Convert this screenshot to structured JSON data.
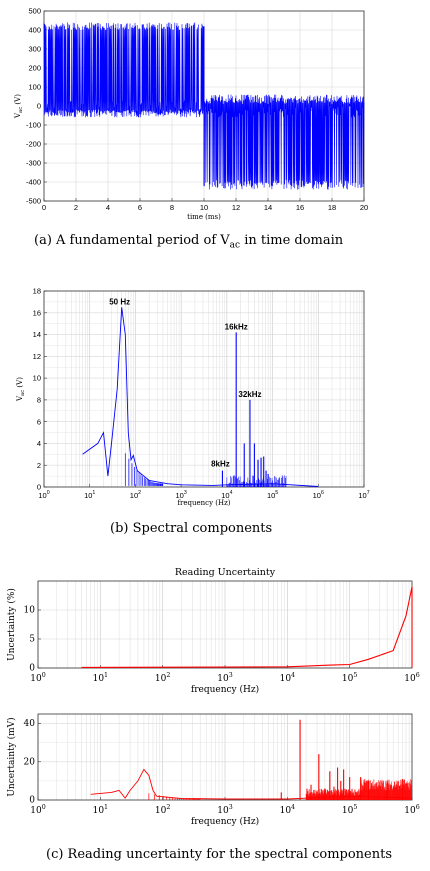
{
  "captions": {
    "a": "(a)  A fundamental period of V",
    "a_sub": "ac",
    "a_tail": " in time domain",
    "b": "(b)  Spectral components",
    "c": "(c)  Reading uncertainty for the spectral components"
  },
  "chart_data": [
    {
      "id": "a",
      "type": "line",
      "title": "",
      "xlabel": "time (ms)",
      "ylabel": "V_ac (V)",
      "xlim": [
        0,
        20
      ],
      "ylim": [
        -500,
        500
      ],
      "xticks": [
        0,
        2,
        4,
        6,
        8,
        10,
        12,
        14,
        16,
        18,
        20
      ],
      "yticks": [
        -500,
        -400,
        -300,
        -200,
        -100,
        0,
        100,
        200,
        300,
        400,
        500
      ],
      "grid": true,
      "series": [
        {
          "color": "#0000ff",
          "envelope": [
            {
              "x": 0,
              "y_high": 440,
              "y_low": -60
            },
            {
              "x": 10,
              "y_high": 440,
              "y_low": -80
            },
            {
              "x": 10.1,
              "y_high": 60,
              "y_low": -440
            },
            {
              "x": 20,
              "y_high": 60,
              "y_low": -450
            }
          ]
        }
      ]
    },
    {
      "id": "b",
      "type": "line",
      "title": "",
      "xlabel": "frequency (Hz)",
      "ylabel": "V_ac (V)",
      "xscale": "log",
      "xlim": [
        1,
        10000000
      ],
      "ylim": [
        0,
        18
      ],
      "xticks": [
        "10^0",
        "10^1",
        "10^2",
        "10^3",
        "10^4",
        "10^5",
        "10^6",
        "10^7"
      ],
      "yticks": [
        0,
        2,
        4,
        6,
        8,
        10,
        12,
        14,
        16,
        18
      ],
      "grid": true,
      "series": [
        {
          "color": "#0000ff",
          "points": [
            [
              7,
              3.0
            ],
            [
              15,
              4.0
            ],
            [
              20,
              5.0
            ],
            [
              25,
              1.0
            ],
            [
              30,
              4.0
            ],
            [
              40,
              9.0
            ],
            [
              50,
              16.5
            ],
            [
              60,
              14.0
            ],
            [
              70,
              5.0
            ],
            [
              80,
              2.5
            ],
            [
              90,
              2.9
            ],
            [
              110,
              1.5
            ],
            [
              200,
              0.6
            ],
            [
              500,
              0.3
            ],
            [
              1000,
              0.2
            ],
            [
              5000,
              0.15
            ],
            [
              10000,
              0.2
            ],
            [
              100000,
              0.3
            ],
            [
              1000000,
              0.05
            ]
          ],
          "spikes": [
            [
              8000,
              1.5
            ],
            [
              16000,
              14.2
            ],
            [
              24000,
              4.0
            ],
            [
              32000,
              8.0
            ],
            [
              40000,
              4.0
            ],
            [
              48000,
              2.5
            ],
            [
              56000,
              2.7
            ],
            [
              64000,
              2.8
            ],
            [
              72000,
              1.5
            ],
            [
              80000,
              1.2
            ]
          ]
        }
      ],
      "annotations": [
        {
          "text": "50 Hz",
          "x": 50,
          "y": 16.5
        },
        {
          "text": "16kHz",
          "x": 16000,
          "y": 14.2
        },
        {
          "text": "32kHz",
          "x": 32000,
          "y": 8.0
        },
        {
          "text": "8kHz",
          "x": 8000,
          "y": 1.5
        }
      ]
    },
    {
      "id": "c1",
      "type": "line",
      "title": "Reading Uncertainty",
      "xlabel": "frequency (Hz)",
      "ylabel": "Uncertainty (%)",
      "xscale": "log",
      "xlim": [
        1,
        1000000
      ],
      "ylim": [
        0,
        15
      ],
      "xticks": [
        "10^0",
        "10^1",
        "10^2",
        "10^3",
        "10^4",
        "10^5",
        "10^6"
      ],
      "yticks": [
        0,
        5,
        10
      ],
      "grid": true,
      "series": [
        {
          "color": "#ff0000",
          "points": [
            [
              5,
              0.1
            ],
            [
              1000,
              0.15
            ],
            [
              10000,
              0.2
            ],
            [
              50000,
              0.5
            ],
            [
              100000,
              0.6
            ],
            [
              200000,
              1.5
            ],
            [
              500000,
              3.0
            ],
            [
              800000,
              9.0
            ],
            [
              1000000,
              14.0
            ],
            [
              1000000,
              0.1
            ]
          ]
        }
      ]
    },
    {
      "id": "c2",
      "type": "line",
      "title": "",
      "xlabel": "frequency (Hz)",
      "ylabel": "Uncertainty (mV)",
      "xscale": "log",
      "xlim": [
        1,
        1000000
      ],
      "ylim": [
        0,
        45
      ],
      "xticks": [
        "10^0",
        "10^1",
        "10^2",
        "10^3",
        "10^4",
        "10^5",
        "10^6"
      ],
      "yticks": [
        0,
        20,
        40
      ],
      "grid": true,
      "series": [
        {
          "color": "#ff0000",
          "points": [
            [
              7,
              3.0
            ],
            [
              15,
              4.0
            ],
            [
              20,
              5.0
            ],
            [
              25,
              1.0
            ],
            [
              30,
              5.0
            ],
            [
              40,
              10.0
            ],
            [
              50,
              16.0
            ],
            [
              60,
              13.0
            ],
            [
              70,
              5.0
            ],
            [
              80,
              2.0
            ],
            [
              200,
              0.8
            ],
            [
              1000,
              0.5
            ],
            [
              10000,
              0.5
            ],
            [
              100000,
              2.0
            ],
            [
              1000000,
              1.0
            ]
          ],
          "spikes": [
            [
              8000,
              4.0
            ],
            [
              16000,
              42.0
            ],
            [
              24000,
              8.0
            ],
            [
              32000,
              24.0
            ],
            [
              40000,
              6.0
            ],
            [
              48000,
              15.0
            ],
            [
              56000,
              7.0
            ],
            [
              64000,
              17.0
            ],
            [
              72000,
              10.0
            ],
            [
              80000,
              16.0
            ],
            [
              100000,
              12.0
            ],
            [
              150000,
              12.0
            ],
            [
              200000,
              10.0
            ],
            [
              400000,
              10.0
            ],
            [
              700000,
              11.0
            ]
          ]
        }
      ]
    }
  ]
}
